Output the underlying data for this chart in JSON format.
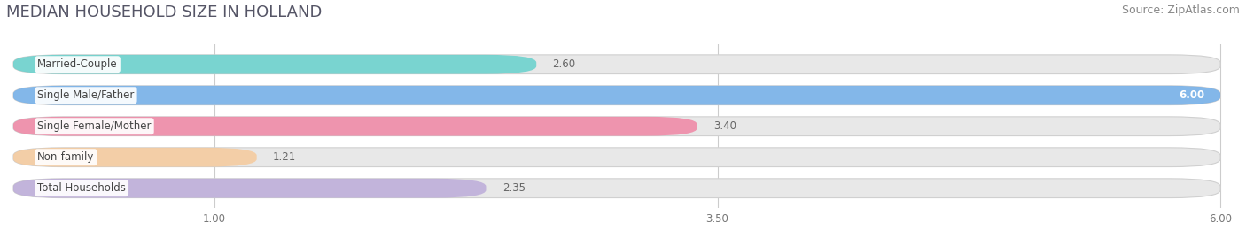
{
  "title": "MEDIAN HOUSEHOLD SIZE IN HOLLAND",
  "source": "Source: ZipAtlas.com",
  "categories": [
    "Married-Couple",
    "Single Male/Father",
    "Single Female/Mother",
    "Non-family",
    "Total Households"
  ],
  "values": [
    2.6,
    6.0,
    3.4,
    1.21,
    2.35
  ],
  "bar_colors": [
    "#5ecfca",
    "#6aabea",
    "#f07fa0",
    "#f7c897",
    "#b9a7d8"
  ],
  "bar_bg_color": "#e8e8e8",
  "xmin": 0.0,
  "xmax": 6.0,
  "xticks": [
    1.0,
    3.5,
    6.0
  ],
  "title_fontsize": 13,
  "source_fontsize": 9,
  "label_fontsize": 8.5,
  "value_fontsize": 8.5,
  "tick_fontsize": 8.5,
  "background_color": "#ffffff",
  "bar_height": 0.62,
  "label_bg": "#ffffff"
}
